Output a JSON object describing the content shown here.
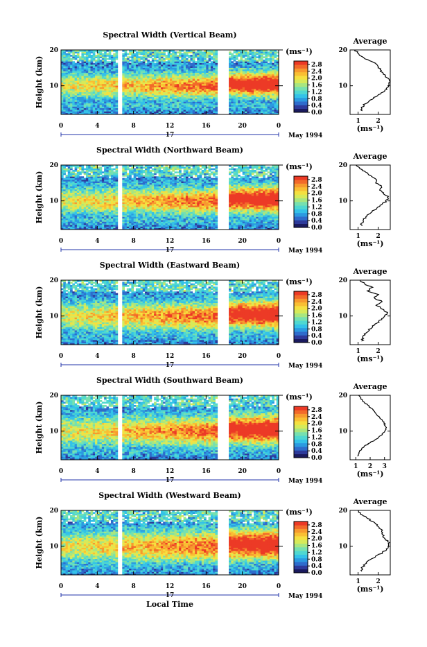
{
  "chart_data": [
    {
      "type": "heatmap",
      "title": "Spectral Width (Vertical Beam)",
      "ylabel": "Height (km)",
      "ylim": [
        2,
        20
      ],
      "yticks": [
        "10",
        "20"
      ],
      "xlim": [
        0,
        24
      ],
      "xticks": [
        "0",
        "4",
        "8",
        "12",
        "16",
        "20",
        "0"
      ],
      "data_gaps_hours": [
        [
          6.3,
          6.8
        ],
        [
          17.3,
          18.4
        ]
      ],
      "colorbar": {
        "unit": "(ms⁻¹)",
        "ticks": [
          "2.8",
          "2.4",
          "2.0",
          "1.6",
          "1.2",
          "0.8",
          "0.4",
          "0.0"
        ],
        "range": [
          0.0,
          3.0
        ]
      },
      "date_day": "17",
      "date_label": "May 1994",
      "average": {
        "title": "Average",
        "xlabel": "(ms⁻¹)",
        "xticks": [
          "1",
          "2"
        ],
        "xlim": [
          0.6,
          2.6
        ],
        "yticks": [
          "10",
          "20"
        ],
        "profile": [
          [
            3,
            1.15
          ],
          [
            4,
            1.2
          ],
          [
            5,
            1.35
          ],
          [
            6,
            1.6
          ],
          [
            7,
            1.9
          ],
          [
            8,
            2.2
          ],
          [
            9,
            2.4
          ],
          [
            10,
            2.55
          ],
          [
            11,
            2.55
          ],
          [
            12,
            2.5
          ],
          [
            13,
            2.3
          ],
          [
            14,
            2.15
          ],
          [
            15,
            2.05
          ],
          [
            16,
            1.95
          ],
          [
            17,
            1.55
          ],
          [
            18,
            1.25
          ],
          [
            19,
            1.0
          ],
          [
            20,
            0.85
          ]
        ]
      }
    },
    {
      "type": "heatmap",
      "title": "Spectral Width (Northward Beam)",
      "ylabel": "Height (km)",
      "ylim": [
        2,
        20
      ],
      "yticks": [
        "10",
        "20"
      ],
      "xlim": [
        0,
        24
      ],
      "xticks": [
        "0",
        "4",
        "8",
        "12",
        "16",
        "20",
        "0"
      ],
      "data_gaps_hours": [
        [
          6.3,
          6.8
        ],
        [
          17.3,
          18.4
        ]
      ],
      "colorbar": {
        "unit": "(ms⁻¹)",
        "ticks": [
          "2.8",
          "2.4",
          "2.0",
          "1.6",
          "1.2",
          "0.8",
          "0.4",
          "0.0"
        ],
        "range": [
          0.0,
          3.0
        ]
      },
      "date_day": "17",
      "date_label": "May 1994",
      "average": {
        "title": "Average",
        "xlabel": "(ms⁻¹)",
        "xticks": [
          "1",
          "2"
        ],
        "xlim": [
          0.6,
          2.6
        ],
        "yticks": [
          "10",
          "20"
        ],
        "profile": [
          [
            3,
            1.15
          ],
          [
            4,
            1.2
          ],
          [
            5,
            1.3
          ],
          [
            6,
            1.45
          ],
          [
            7,
            1.7
          ],
          [
            8,
            1.95
          ],
          [
            9,
            2.2
          ],
          [
            10,
            2.4
          ],
          [
            11,
            2.5
          ],
          [
            12,
            2.3
          ],
          [
            13,
            2.1
          ],
          [
            14,
            2.2
          ],
          [
            15,
            1.9
          ],
          [
            16,
            1.95
          ],
          [
            17,
            1.6
          ],
          [
            18,
            1.4
          ],
          [
            19,
            1.1
          ],
          [
            20,
            0.9
          ]
        ]
      }
    },
    {
      "type": "heatmap",
      "title": "Spectral Width (Eastward Beam)",
      "ylabel": "Height (km)",
      "ylim": [
        2,
        20
      ],
      "yticks": [
        "10",
        "20"
      ],
      "xlim": [
        0,
        24
      ],
      "xticks": [
        "0",
        "4",
        "8",
        "12",
        "16",
        "20",
        "0"
      ],
      "data_gaps_hours": [
        [
          6.3,
          6.8
        ],
        [
          17.3,
          18.4
        ]
      ],
      "colorbar": {
        "unit": "(ms⁻¹)",
        "ticks": [
          "2.8",
          "2.4",
          "2.0",
          "1.6",
          "1.2",
          "0.8",
          "0.4",
          "0.0"
        ],
        "range": [
          0.0,
          3.0
        ]
      },
      "date_day": "17",
      "date_label": "May 1994",
      "average": {
        "title": "Average",
        "xlabel": "(ms⁻¹)",
        "xticks": [
          "1",
          "2"
        ],
        "xlim": [
          0.6,
          2.6
        ],
        "yticks": [
          "10",
          "20"
        ],
        "profile": [
          [
            3,
            1.2
          ],
          [
            4,
            1.25
          ],
          [
            5,
            1.35
          ],
          [
            6,
            1.5
          ],
          [
            7,
            1.7
          ],
          [
            8,
            1.95
          ],
          [
            9,
            2.15
          ],
          [
            10,
            2.35
          ],
          [
            11,
            2.45
          ],
          [
            12,
            2.2
          ],
          [
            13,
            1.9
          ],
          [
            14,
            2.2
          ],
          [
            15,
            1.8
          ],
          [
            16,
            2.0
          ],
          [
            17,
            1.5
          ],
          [
            18,
            1.7
          ],
          [
            19,
            1.3
          ],
          [
            20,
            1.1
          ]
        ]
      }
    },
    {
      "type": "heatmap",
      "title": "Spectral Width (Southward Beam)",
      "ylabel": "Height (km)",
      "ylim": [
        2,
        20
      ],
      "yticks": [
        "10",
        "20"
      ],
      "xlim": [
        0,
        24
      ],
      "xticks": [
        "0",
        "4",
        "8",
        "12",
        "16",
        "20",
        "0"
      ],
      "data_gaps_hours": [
        [
          6.3,
          6.8
        ],
        [
          17.3,
          18.4
        ]
      ],
      "colorbar": {
        "unit": "(ms⁻¹)",
        "ticks": [
          "2.8",
          "2.4",
          "2.0",
          "1.6",
          "1.2",
          "0.8",
          "0.4",
          "0.0"
        ],
        "range": [
          0.0,
          3.0
        ]
      },
      "date_day": "17",
      "date_label": "May 1994",
      "average": {
        "title": "Average",
        "xlabel": "(ms⁻¹)",
        "xticks": [
          "1",
          "2",
          "3"
        ],
        "xlim": [
          0.6,
          3.4
        ],
        "yticks": [
          "10",
          "20"
        ],
        "profile": [
          [
            3,
            1.1
          ],
          [
            4,
            1.2
          ],
          [
            5,
            1.4
          ],
          [
            6,
            1.7
          ],
          [
            7,
            2.1
          ],
          [
            8,
            2.5
          ],
          [
            9,
            2.8
          ],
          [
            10,
            3.0
          ],
          [
            11,
            3.1
          ],
          [
            12,
            3.0
          ],
          [
            13,
            2.85
          ],
          [
            14,
            2.6
          ],
          [
            15,
            2.4
          ],
          [
            16,
            2.2
          ],
          [
            17,
            1.9
          ],
          [
            18,
            1.6
          ],
          [
            19,
            1.35
          ],
          [
            20,
            1.2
          ]
        ]
      }
    },
    {
      "type": "heatmap",
      "title": "Spectral Width (Westward Beam)",
      "ylabel": "Height (km)",
      "ylim": [
        2,
        20
      ],
      "yticks": [
        "10",
        "20"
      ],
      "xlim": [
        0,
        24
      ],
      "xticks": [
        "0",
        "4",
        "8",
        "12",
        "16",
        "20",
        "0"
      ],
      "data_gaps_hours": [
        [
          6.3,
          6.8
        ],
        [
          17.3,
          18.4
        ]
      ],
      "colorbar": {
        "unit": "(ms⁻¹)",
        "ticks": [
          "2.8",
          "2.4",
          "2.0",
          "1.6",
          "1.2",
          "0.8",
          "0.4",
          "0.0"
        ],
        "range": [
          0.0,
          3.0
        ]
      },
      "date_day": "17",
      "date_label": "May 1994",
      "xlabel": "Local Time",
      "average": {
        "title": "Average",
        "xlabel": "(ms⁻¹)",
        "xticks": [
          "1",
          "2"
        ],
        "xlim": [
          0.6,
          2.6
        ],
        "yticks": [
          "10",
          "20"
        ],
        "profile": [
          [
            3,
            1.15
          ],
          [
            4,
            1.2
          ],
          [
            5,
            1.35
          ],
          [
            6,
            1.55
          ],
          [
            7,
            1.85
          ],
          [
            8,
            2.15
          ],
          [
            9,
            2.4
          ],
          [
            10,
            2.55
          ],
          [
            11,
            2.55
          ],
          [
            12,
            2.35
          ],
          [
            13,
            2.25
          ],
          [
            14,
            2.2
          ],
          [
            15,
            2.1
          ],
          [
            16,
            1.95
          ],
          [
            17,
            1.7
          ],
          [
            18,
            1.4
          ],
          [
            19,
            1.15
          ],
          [
            20,
            1.0
          ]
        ]
      }
    }
  ],
  "colormap": [
    "#1a1a5e",
    "#2d3a9a",
    "#2e6ccc",
    "#2b9ae0",
    "#34c2e8",
    "#4fd8d0",
    "#76e0b0",
    "#a8e680",
    "#d6ea5a",
    "#f5e040",
    "#f9bf33",
    "#f79a2e",
    "#f26a2a",
    "#ec3a26"
  ]
}
